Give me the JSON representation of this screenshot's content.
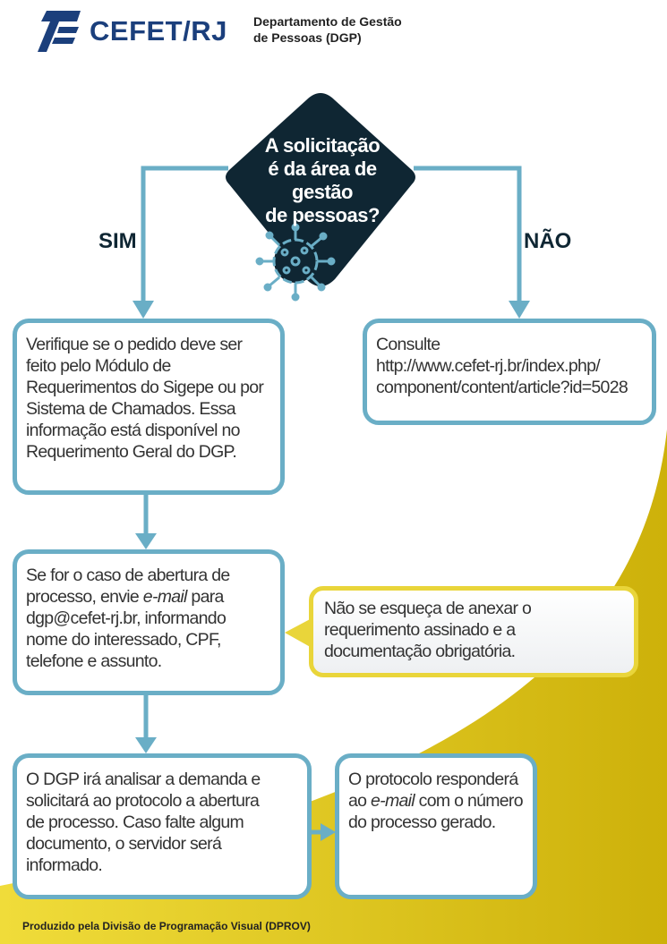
{
  "header": {
    "logo_text": "CEFET/RJ",
    "department_lines": [
      "Departamento de Gestão",
      "de Pessoas (DGP)"
    ]
  },
  "decision": {
    "question_lines": [
      "A solicitação",
      "é da área de gestão",
      "de pessoas?"
    ],
    "yes_label": "SIM",
    "no_label": "NÃO"
  },
  "steps": {
    "verify_lines": [
      "Verifique se o pedido deve ser",
      "feito pelo Módulo de",
      "Requerimentos do Sigepe ou por",
      "Sistema de Chamados. Essa",
      "informação está disponível no",
      "Requerimento Geral do DGP."
    ],
    "consult_lines": [
      "Consulte",
      "http://www.cefet-rj.br/index.php/",
      "component/content/article?id=5028"
    ],
    "open_process": {
      "line1": "Se for o caso de abertura de",
      "line2_a": "processo, envie ",
      "line2_b": "e-mail",
      "line2_c": " para",
      "line3": "dgp@cefet-rj.br, informando",
      "line4": "nome do interessado, CPF,",
      "line5": "telefone e assunto."
    },
    "reminder_lines": [
      "Não se esqueça de anexar o",
      "requerimento assinado e a",
      "documentação obrigatória."
    ],
    "analyze_lines": [
      "O DGP irá analisar a demanda e",
      "solicitará ao protocolo a abertura",
      "de processo. Caso falte algum",
      "documento, o servidor será",
      "informado."
    ],
    "protocol": {
      "line1": "O protocolo responderá",
      "line2_a": "ao ",
      "line2_b": "e-mail",
      "line2_c": " com o número",
      "line3": "do processo gerado."
    }
  },
  "footer": {
    "credit": "Produzido pela Divisão de Programação Visual (DPROV)"
  },
  "colors": {
    "navy": "#0f2633",
    "brand_blue": "#1b3f7c",
    "connector": "#6aaec6",
    "yellow": "#d9c010",
    "callout_border": "#e9d53a"
  },
  "icons": [
    "cefet-logo",
    "virus-icon"
  ]
}
